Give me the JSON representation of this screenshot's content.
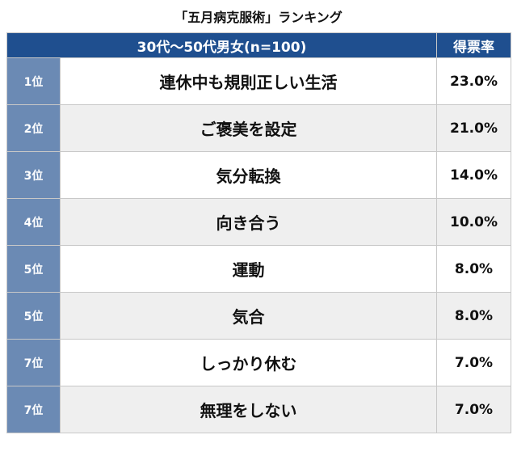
{
  "title": "「五月病克服術」ランキング",
  "chart_data": {
    "type": "table",
    "title": "「五月病克服術」ランキング",
    "header": {
      "group": "30代〜50代男女(n=100)",
      "rate": "得票率"
    },
    "rows": [
      {
        "rank": "1位",
        "item": "連休中も規則正しい生活",
        "rate": "23.0%",
        "value": 23.0
      },
      {
        "rank": "2位",
        "item": "ご褒美を設定",
        "rate": "21.0%",
        "value": 21.0
      },
      {
        "rank": "3位",
        "item": "気分転換",
        "rate": "14.0%",
        "value": 14.0
      },
      {
        "rank": "4位",
        "item": "向き合う",
        "rate": "10.0%",
        "value": 10.0
      },
      {
        "rank": "5位",
        "item": "運動",
        "rate": "8.0%",
        "value": 8.0
      },
      {
        "rank": "5位",
        "item": "気合",
        "rate": "8.0%",
        "value": 8.0
      },
      {
        "rank": "7位",
        "item": "しっかり休む",
        "rate": "7.0%",
        "value": 7.0
      },
      {
        "rank": "7位",
        "item": "無理をしない",
        "rate": "7.0%",
        "value": 7.0
      }
    ]
  },
  "colors": {
    "header_bg": "#1f4f8f",
    "rank_bg": "#6b8ab4",
    "row_alt_bg": "#efefef"
  }
}
